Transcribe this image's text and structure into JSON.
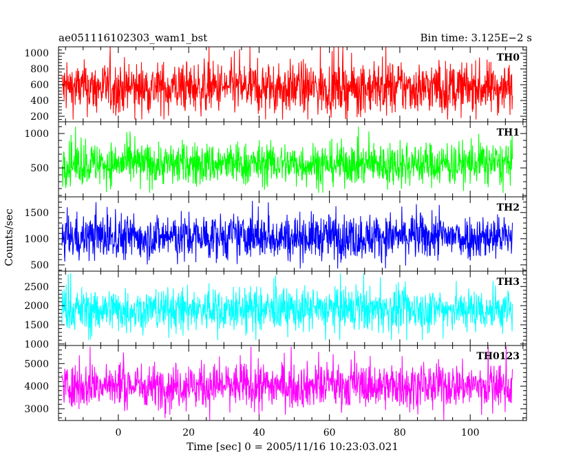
{
  "chart_data": {
    "type": "line",
    "title_left": "ae051116102303_wam1_bst",
    "title_right": "Bin time: 3.125E−2 s",
    "xlabel": "Time [sec] 0 = 2005/11/16 10:23:03.021",
    "ylabel": "Counts/sec",
    "xlim": [
      -17,
      116
    ],
    "x_data_range": [
      -16,
      112
    ],
    "x_ticks": [
      0,
      20,
      40,
      60,
      80,
      100
    ],
    "x_tick_labels": [
      "0",
      "20",
      "40",
      "60",
      "80",
      "100"
    ],
    "grid": false,
    "panels": [
      {
        "name": "TH0",
        "color": "#ff0000",
        "ylim": [
          130,
          1080
        ],
        "y_ticks": [
          200,
          400,
          600,
          800,
          1000
        ],
        "y_tick_labels": [
          "200",
          "400",
          "600",
          "800",
          "1000"
        ],
        "mean": 560,
        "typical_low": 250,
        "typical_high": 880,
        "min": 160,
        "max": 1080
      },
      {
        "name": "TH1",
        "color": "#00ff00",
        "ylim": [
          80,
          1170
        ],
        "y_ticks": [
          500,
          1000
        ],
        "y_tick_labels": [
          "500",
          "1000"
        ],
        "mean": 560,
        "typical_low": 270,
        "typical_high": 870,
        "min": 140,
        "max": 1100
      },
      {
        "name": "TH2",
        "color": "#0000ff",
        "ylim": [
          380,
          1800
        ],
        "y_ticks": [
          500,
          1000,
          1500
        ],
        "y_tick_labels": [
          "500",
          "1000",
          "1500"
        ],
        "mean": 1040,
        "typical_low": 620,
        "typical_high": 1460,
        "min": 430,
        "max": 1780
      },
      {
        "name": "TH3",
        "color": "#00ffff",
        "ylim": [
          960,
          2900
        ],
        "y_ticks": [
          1000,
          1500,
          2000,
          2500
        ],
        "y_tick_labels": [
          "1000",
          "1500",
          "2000",
          "2500"
        ],
        "mean": 1900,
        "typical_low": 1350,
        "typical_high": 2450,
        "min": 1100,
        "max": 2850
      },
      {
        "name": "TH0123",
        "color": "#ff00ff",
        "ylim": [
          2480,
          5800
        ],
        "y_ticks": [
          3000,
          4000,
          5000
        ],
        "y_tick_labels": [
          "3000",
          "4000",
          "5000"
        ],
        "mean": 4030,
        "typical_low": 3100,
        "typical_high": 5000,
        "min": 2500,
        "max": 5750
      }
    ]
  }
}
